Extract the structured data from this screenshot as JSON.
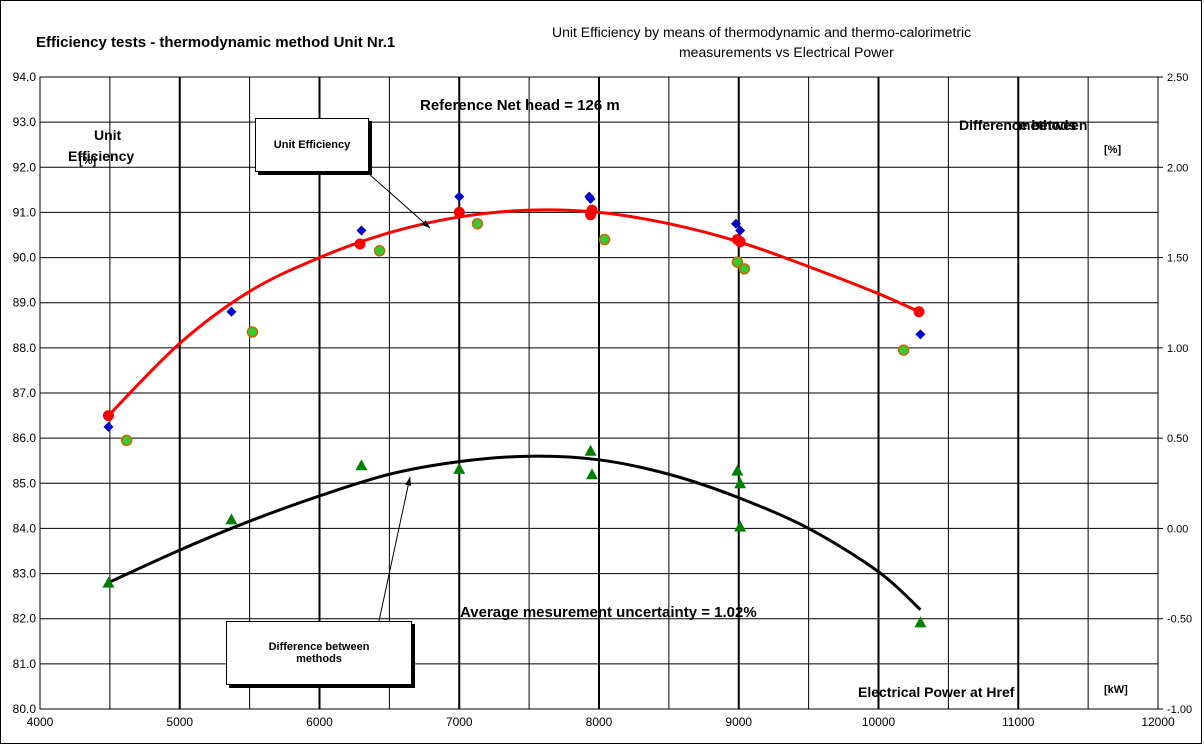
{
  "title": "Efficiency tests - thermodynamic method Unit Nr.1",
  "subtitle_line1": "Unit Efficiency by means of thermodynamic and thermo-calorimetric",
  "subtitle_line2": "measurements vs Electrical Power",
  "left_axis_label_line1": "Unit",
  "left_axis_label_line2": "Efficiency",
  "left_axis_unit": "[%]",
  "right_axis_label_line1": "Difference between",
  "right_axis_label_line2": "methods",
  "right_axis_unit": "[%]",
  "x_axis_label": "Electrical Power at Href",
  "x_axis_unit": "[kW]",
  "annotation_reference": "Reference Net head  = 126 m",
  "annotation_uncertainty": "Average mesurement uncertainty = 1.02%",
  "callout_unit_efficiency": "Unit Efficiency",
  "callout_difference_line1": "Difference between",
  "callout_difference_line2": "methods",
  "colors": {
    "unit_efficiency": "#ff0000",
    "thermodynamic": "#0000cc",
    "thermo_calorimetric_fill": "#33cc33",
    "thermo_calorimetric_edge": "#cc6600",
    "difference": "#008000",
    "difference_curve": "#000000"
  },
  "chart_data": {
    "type": "scatter",
    "x_ticks": [
      4000,
      5000,
      6000,
      7000,
      8000,
      9000,
      10000,
      11000,
      12000
    ],
    "y_ticks": [
      "80.0",
      "81.0",
      "82.0",
      "83.0",
      "84.0",
      "85.0",
      "86.0",
      "87.0",
      "88.0",
      "89.0",
      "90.0",
      "91.0",
      "92.0",
      "93.0",
      "94.0"
    ],
    "y2_ticks": [
      "-1.00",
      "-0.50",
      "0.00",
      "0.50",
      "1.00",
      "1.50",
      "2.00",
      "2.50"
    ],
    "xlim": [
      4000,
      12000
    ],
    "ylim": [
      80,
      94
    ],
    "y2lim": [
      -1,
      2.5
    ],
    "grid": true,
    "series": [
      {
        "marker": "circle",
        "axis": "left",
        "points": [
          [
            4490,
            86.5
          ],
          [
            6290,
            90.3
          ],
          [
            7000,
            91.0
          ],
          [
            7940,
            90.95
          ],
          [
            7950,
            91.05
          ],
          [
            8990,
            90.4
          ],
          [
            9010,
            90.35
          ],
          [
            10290,
            88.8
          ]
        ]
      },
      {
        "marker": "diamond",
        "axis": "left",
        "points": [
          [
            4490,
            86.25
          ],
          [
            5370,
            88.8
          ],
          [
            6300,
            90.6
          ],
          [
            7000,
            91.35
          ],
          [
            7930,
            91.35
          ],
          [
            7940,
            91.3
          ],
          [
            8980,
            90.75
          ],
          [
            9010,
            90.6
          ],
          [
            10300,
            88.3
          ]
        ]
      },
      {
        "marker": "circle-edged",
        "axis": "left",
        "points": [
          [
            4620,
            85.95
          ],
          [
            5520,
            88.35
          ],
          [
            6430,
            90.15
          ],
          [
            7130,
            90.75
          ],
          [
            8040,
            90.4
          ],
          [
            8990,
            89.9
          ],
          [
            9040,
            89.75
          ],
          [
            10180,
            87.95
          ]
        ]
      },
      {
        "marker": "triangle",
        "axis": "right",
        "points": [
          [
            4490,
            -0.3
          ],
          [
            5370,
            0.05
          ],
          [
            6300,
            0.35
          ],
          [
            7000,
            0.33
          ],
          [
            7940,
            0.43
          ],
          [
            7950,
            0.3
          ],
          [
            8990,
            0.32
          ],
          [
            9010,
            0.25
          ],
          [
            9010,
            0.01
          ],
          [
            10300,
            -0.52
          ]
        ]
      }
    ],
    "trend_unit_efficiency": [
      [
        4490,
        86.5
      ],
      [
        5000,
        88.1
      ],
      [
        5500,
        89.25
      ],
      [
        6000,
        90.0
      ],
      [
        6500,
        90.55
      ],
      [
        7000,
        90.9
      ],
      [
        7500,
        91.05
      ],
      [
        8000,
        91.0
      ],
      [
        8500,
        90.75
      ],
      [
        9000,
        90.35
      ],
      [
        9500,
        89.8
      ],
      [
        10000,
        89.2
      ],
      [
        10290,
        88.8
      ]
    ],
    "trend_difference": [
      [
        4490,
        -0.3
      ],
      [
        5000,
        -0.12
      ],
      [
        5500,
        0.04
      ],
      [
        6000,
        0.18
      ],
      [
        6500,
        0.3
      ],
      [
        7000,
        0.37
      ],
      [
        7500,
        0.4
      ],
      [
        8000,
        0.38
      ],
      [
        8500,
        0.3
      ],
      [
        9000,
        0.17
      ],
      [
        9500,
        0.0
      ],
      [
        10000,
        -0.24
      ],
      [
        10300,
        -0.45
      ]
    ]
  }
}
